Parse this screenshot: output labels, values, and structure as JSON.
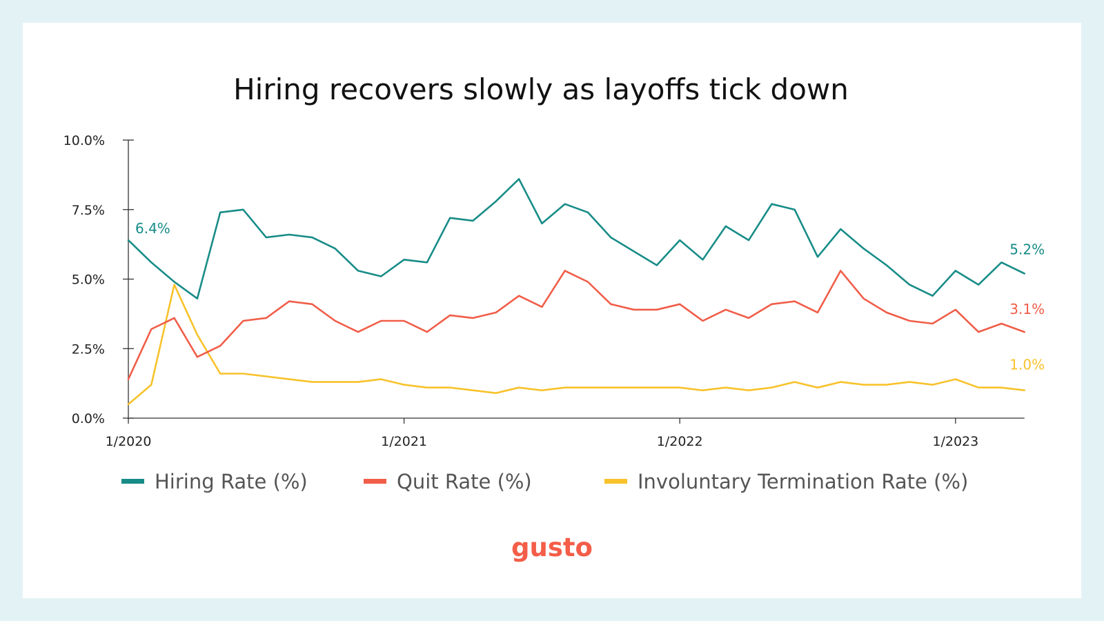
{
  "logo_text": "gusto",
  "chart_data": {
    "type": "line",
    "title": "Hiring recovers slowly as layoffs tick down",
    "xlabel": "",
    "ylabel": "",
    "ylim": [
      0,
      10
    ],
    "yticks": [
      {
        "value": 0,
        "label": "0.0%"
      },
      {
        "value": 2.5,
        "label": "2.5%"
      },
      {
        "value": 5,
        "label": "5.0%"
      },
      {
        "value": 7.5,
        "label": "7.5%"
      },
      {
        "value": 10,
        "label": "10.0%"
      }
    ],
    "x_start": "1/2020",
    "xticks": [
      {
        "month_index": 0,
        "label": "1/2020"
      },
      {
        "month_index": 12,
        "label": "1/2021"
      },
      {
        "month_index": 24,
        "label": "1/2022"
      },
      {
        "month_index": 36,
        "label": "1/2023"
      }
    ],
    "legend_placement": "bottom",
    "grid": false,
    "series": [
      {
        "name": "Hiring Rate (%)",
        "color": "#178c87",
        "start_label": "6.4%",
        "end_label": "5.2%",
        "values": [
          6.4,
          5.6,
          4.9,
          4.3,
          7.4,
          7.5,
          6.5,
          6.6,
          6.5,
          6.1,
          5.3,
          5.1,
          5.7,
          5.6,
          7.2,
          7.1,
          7.8,
          8.6,
          7.0,
          7.7,
          7.4,
          6.5,
          6.0,
          5.5,
          6.4,
          5.7,
          6.9,
          6.4,
          7.7,
          7.5,
          5.8,
          6.8,
          6.1,
          5.5,
          4.8,
          4.4,
          5.3,
          4.8,
          5.6,
          5.2
        ]
      },
      {
        "name": "Quit Rate (%)",
        "color": "#f05d48",
        "end_label": "3.1%",
        "values": [
          1.4,
          3.2,
          3.6,
          2.2,
          2.6,
          3.5,
          3.6,
          4.2,
          4.1,
          3.5,
          3.1,
          3.5,
          3.5,
          3.1,
          3.7,
          3.6,
          3.8,
          4.4,
          4.0,
          5.3,
          4.9,
          4.1,
          3.9,
          3.9,
          4.1,
          3.5,
          3.9,
          3.6,
          4.1,
          4.2,
          3.8,
          5.3,
          4.3,
          3.8,
          3.5,
          3.4,
          3.9,
          3.1,
          3.4,
          3.1
        ]
      },
      {
        "name": "Involuntary Termination Rate (%)",
        "color": "#f8c22b",
        "end_label": "1.0%",
        "values": [
          0.5,
          1.2,
          4.8,
          3.0,
          1.6,
          1.6,
          1.5,
          1.4,
          1.3,
          1.3,
          1.3,
          1.4,
          1.2,
          1.1,
          1.1,
          1.0,
          0.9,
          1.1,
          1.0,
          1.1,
          1.1,
          1.1,
          1.1,
          1.1,
          1.1,
          1.0,
          1.1,
          1.0,
          1.1,
          1.3,
          1.1,
          1.3,
          1.2,
          1.2,
          1.3,
          1.2,
          1.4,
          1.1,
          1.1,
          1.0
        ]
      }
    ]
  }
}
